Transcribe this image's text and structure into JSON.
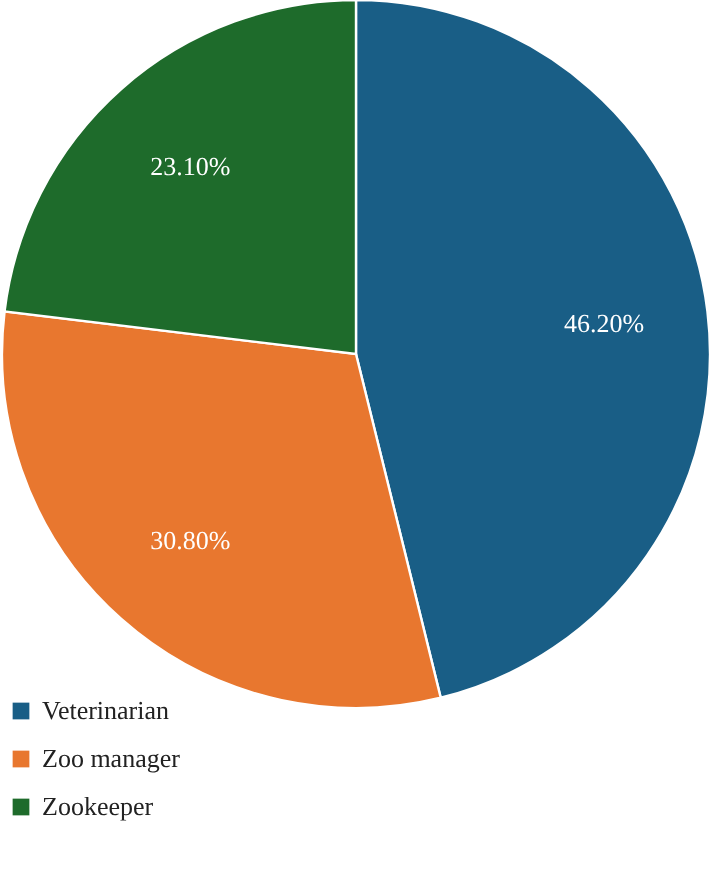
{
  "chart_data": {
    "type": "pie",
    "categories": [
      "Veterinarian",
      "Zoo manager",
      "Zookeeper"
    ],
    "values": [
      46.2,
      30.8,
      23.1
    ],
    "colors": [
      "#195e86",
      "#e8772f",
      "#1e6b2b"
    ],
    "value_labels": [
      "46.20%",
      "30.80%",
      "23.10%"
    ],
    "legend": "bottom left"
  }
}
